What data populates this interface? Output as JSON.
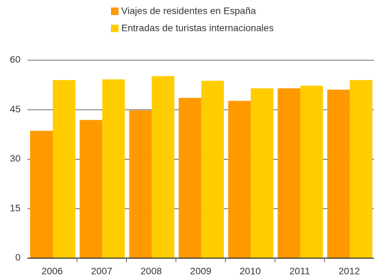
{
  "chart_data": {
    "type": "bar",
    "categories": [
      "2006",
      "2007",
      "2008",
      "2009",
      "2010",
      "2011",
      "2012"
    ],
    "series": [
      {
        "name": "Viajes de residentes en España",
        "color": "#ff9900",
        "values": [
          38.6,
          41.9,
          44.8,
          48.6,
          47.7,
          51.5,
          51.1
        ]
      },
      {
        "name": "Entradas de turistas internacionales",
        "color": "#ffcc00",
        "values": [
          54.0,
          54.2,
          55.2,
          53.8,
          51.5,
          52.3,
          54.0
        ]
      }
    ],
    "ylim": [
      0,
      60
    ],
    "yticks": [
      0,
      15,
      30,
      45,
      60
    ],
    "grid": true,
    "legend": "top"
  }
}
